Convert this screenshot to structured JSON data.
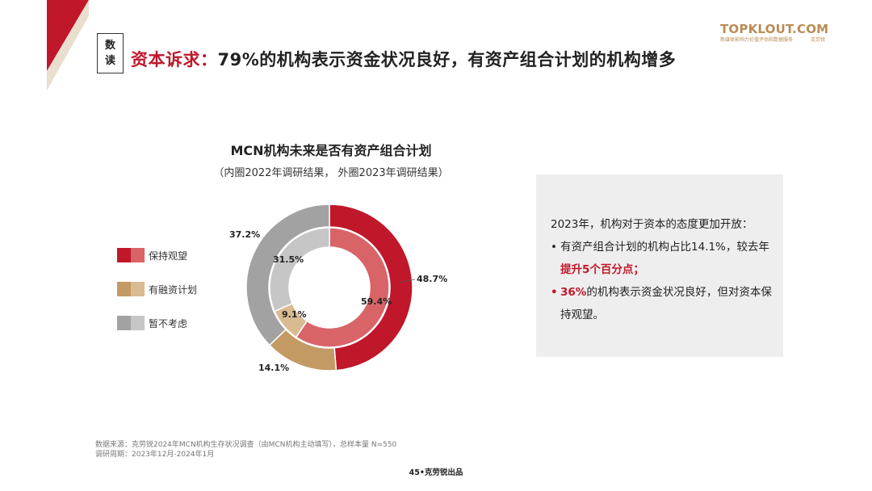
{
  "header": {
    "tag_line1": "数",
    "tag_line2": "读",
    "headline_prefix": "资本诉求：",
    "headline_rest": "79%的机构表示资金状况良好，有资产组合计划的机构增多"
  },
  "logo": {
    "main": "TOPKLOUT.COM",
    "sub_left": "新媒体影响力价值评估和数据服务",
    "sub_right": "克劳锐"
  },
  "colors": {
    "red": "#c0172a",
    "red_light": "#d86468",
    "gold": "#c39a64",
    "gray_dark": "#a2a2a2",
    "gray_light": "#c6c6c6",
    "corner_red": "#c0172a",
    "corner_beige": "#eadfcf"
  },
  "chart_data": {
    "type": "pie",
    "title": "MCN机构未来是否有资产组合计划",
    "subtitle": "（内圈2022年调研结果， 外圈2023年调研结果）",
    "categories": [
      "保持观望",
      "有融资计划",
      "暂不考虑"
    ],
    "series": [
      {
        "name": "外圈2023年",
        "values": [
          48.7,
          14.1,
          37.2
        ],
        "labels": [
          "48.7%",
          "14.1%",
          "37.2%"
        ]
      },
      {
        "name": "内圈2022年",
        "values": [
          59.4,
          9.1,
          31.5
        ],
        "labels": [
          "59.4%",
          "9.1%",
          "31.5%"
        ]
      }
    ]
  },
  "legend": {
    "items": [
      {
        "label": "保持观望"
      },
      {
        "label": "有融资计划"
      },
      {
        "label": "暂不考虑"
      }
    ]
  },
  "info": {
    "intro": "2023年，机构对于资本的态度更加开放：",
    "bullet1_text": "有资产组合计划的机构占比14.1%，较去年",
    "bullet1_highlight": "提升5个百分点；",
    "bullet2_highlight": "36%",
    "bullet2_text": "的机构表示资金状况良好，但对资本保持观望。",
    "bullet_mark": "•"
  },
  "footnote": {
    "line1": "数据来源：克劳锐2024年MCN机构生存状况调查（由MCN机构主动填写），总样本量 N=550",
    "line2": "调研周期：2023年12月-2024年1月"
  },
  "page_footer": "45•克劳锐出品"
}
